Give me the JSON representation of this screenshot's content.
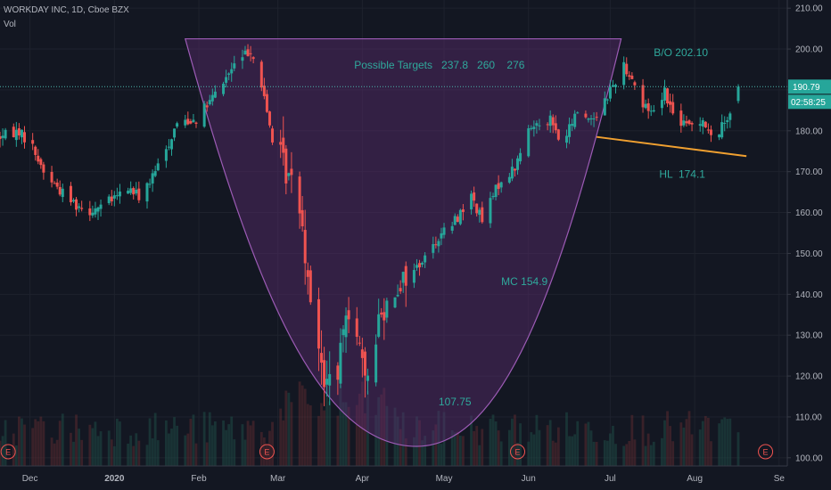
{
  "header": {
    "symbol_line": "WORKDAY INC, 1D, Cboe BZX",
    "indicator": "Vol"
  },
  "colors": {
    "background": "#131722",
    "up": "#26a69a",
    "down": "#ef5350",
    "cup_fill": "#5b2c6f",
    "cup_stroke": "#9c5bb5",
    "annotation": "#2fa99c",
    "trendline": "#f0a030",
    "price_badge": "#26a69a"
  },
  "chart_data": {
    "type": "candlestick",
    "y_axis": {
      "min": 98,
      "max": 212,
      "ticks": [
        100,
        110,
        120,
        130,
        140,
        150,
        160,
        170,
        180,
        190,
        200,
        210
      ],
      "tick_labels": [
        "100.00",
        "110.00",
        "120.00",
        "130.00",
        "140.00",
        "150.00",
        "160.00",
        "170.00",
        "180.00",
        "190.00",
        "200.00",
        "210.00"
      ]
    },
    "x_axis": {
      "start": "2019-11-20",
      "end": "2020-09-04",
      "labels": [
        {
          "date": "2019-12-01",
          "text": "Dec",
          "bold": false
        },
        {
          "date": "2020-01-01",
          "text": "2020",
          "bold": true
        },
        {
          "date": "2020-02-01",
          "text": "Feb",
          "bold": false
        },
        {
          "date": "2020-03-01",
          "text": "Mar",
          "bold": false
        },
        {
          "date": "2020-04-01",
          "text": "Apr",
          "bold": false
        },
        {
          "date": "2020-05-01",
          "text": "May",
          "bold": false
        },
        {
          "date": "2020-06-01",
          "text": "Jun",
          "bold": false
        },
        {
          "date": "2020-07-01",
          "text": "Jul",
          "bold": false
        },
        {
          "date": "2020-08-01",
          "text": "Aug",
          "bold": false
        },
        {
          "date": "2020-09-01",
          "text": "Se",
          "bold": false
        }
      ]
    },
    "price_path": [
      [
        "2019-11-20",
        178.5
      ],
      [
        "2019-11-27",
        180.0
      ],
      [
        "2019-12-02",
        176.0
      ],
      [
        "2019-12-06",
        170.0
      ],
      [
        "2019-12-12",
        165.5
      ],
      [
        "2019-12-18",
        162.0
      ],
      [
        "2019-12-23",
        160.5
      ],
      [
        "2019-12-31",
        163.0
      ],
      [
        "2020-01-06",
        166.0
      ],
      [
        "2020-01-10",
        164.0
      ],
      [
        "2020-01-15",
        168.5
      ],
      [
        "2020-01-21",
        177.0
      ],
      [
        "2020-01-24",
        182.0
      ],
      [
        "2020-01-31",
        183.0
      ],
      [
        "2020-02-05",
        187.0
      ],
      [
        "2020-02-10",
        192.0
      ],
      [
        "2020-02-14",
        196.0
      ],
      [
        "2020-02-20",
        200.0
      ],
      [
        "2020-02-24",
        191.0
      ],
      [
        "2020-02-28",
        178.0
      ],
      [
        "2020-03-04",
        170.0
      ],
      [
        "2020-03-09",
        163.0
      ],
      [
        "2020-03-12",
        145.0
      ],
      [
        "2020-03-16",
        128.0
      ],
      [
        "2020-03-18",
        116.0
      ],
      [
        "2020-03-20",
        122.0
      ],
      [
        "2020-03-23",
        118.0
      ],
      [
        "2020-03-26",
        138.0
      ],
      [
        "2020-03-30",
        132.0
      ],
      [
        "2020-04-02",
        117.0
      ],
      [
        "2020-04-07",
        134.0
      ],
      [
        "2020-04-13",
        142.0
      ],
      [
        "2020-04-20",
        146.0
      ],
      [
        "2020-04-24",
        149.0
      ],
      [
        "2020-04-29",
        154.0
      ],
      [
        "2020-05-05",
        158.0
      ],
      [
        "2020-05-11",
        164.0
      ],
      [
        "2020-05-15",
        158.0
      ],
      [
        "2020-05-21",
        167.0
      ],
      [
        "2020-05-27",
        171.0
      ],
      [
        "2020-06-01",
        180.0
      ],
      [
        "2020-06-04",
        182.0
      ],
      [
        "2020-06-09",
        183.0
      ],
      [
        "2020-06-12",
        178.0
      ],
      [
        "2020-06-15",
        179.0
      ],
      [
        "2020-06-19",
        185.0
      ],
      [
        "2020-06-23",
        183.0
      ],
      [
        "2020-06-26",
        184.0
      ],
      [
        "2020-07-01",
        190.0
      ],
      [
        "2020-07-06",
        196.0
      ],
      [
        "2020-07-09",
        193.0
      ],
      [
        "2020-07-13",
        186.0
      ],
      [
        "2020-07-17",
        185.0
      ],
      [
        "2020-07-21",
        190.0
      ],
      [
        "2020-07-24",
        184.0
      ],
      [
        "2020-07-29",
        181.0
      ],
      [
        "2020-08-04",
        183.0
      ],
      [
        "2020-08-07",
        178.0
      ],
      [
        "2020-08-11",
        181.0
      ],
      [
        "2020-08-14",
        185.0
      ],
      [
        "2020-08-17",
        190.79
      ]
    ],
    "earnings": [
      "2019-11-23",
      "2020-02-26",
      "2020-05-28",
      "2020-08-27"
    ],
    "cup": {
      "left": [
        "2020-01-27",
        202.5
      ],
      "bottom": [
        "2020-04-21",
        102.8
      ],
      "right": [
        "2020-07-05",
        202.5
      ]
    },
    "trendline": [
      [
        "2020-06-26",
        178.5
      ],
      [
        "2020-08-20",
        173.8
      ]
    ],
    "last_price": 190.79,
    "last_price_label": "190.79",
    "countdown_label": "02:58:25",
    "annotations": [
      {
        "id": "targets",
        "text": "Possible Targets   237.8   260    276",
        "date": "2020-03-29",
        "price": 195.2
      },
      {
        "id": "breakout",
        "text": "B/O 202.10",
        "date": "2020-07-17",
        "price": 198.3
      },
      {
        "id": "higher-low",
        "text": "HL  174.1",
        "date": "2020-07-19",
        "price": 168.5
      },
      {
        "id": "mc",
        "text": "MC 154.9",
        "date": "2020-05-22",
        "price": 142.2
      },
      {
        "id": "cup-low",
        "text": "107.75",
        "date": "2020-04-29",
        "price": 112.8
      }
    ],
    "earnings_label": "E"
  }
}
